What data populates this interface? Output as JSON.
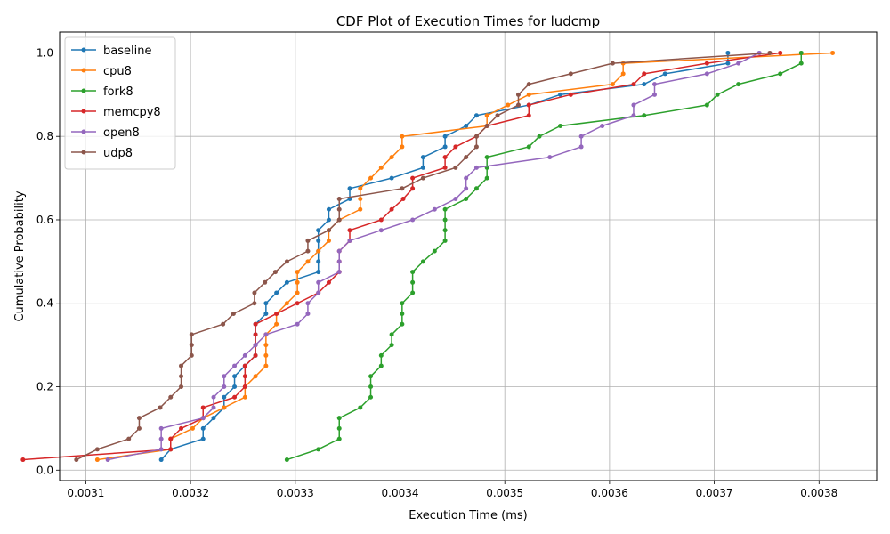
{
  "chart_data": {
    "type": "line",
    "title": "CDF Plot of Execution Times for ludcmp",
    "xlabel": "Execution Time (ms)",
    "ylabel": "Cumulative Probability",
    "xlim": [
      0.003075,
      0.003855
    ],
    "ylim": [
      -0.025,
      1.05
    ],
    "xticks": [
      0.0031,
      0.0032,
      0.0033,
      0.0034,
      0.0035,
      0.0036,
      0.0037,
      0.0038
    ],
    "xtick_labels": [
      "0.0031",
      "0.0032",
      "0.0033",
      "0.0034",
      "0.0035",
      "0.0036",
      "0.0037",
      "0.0038"
    ],
    "yticks": [
      0.0,
      0.2,
      0.4,
      0.6,
      0.8,
      1.0
    ],
    "ytick_labels": [
      "0.0",
      "0.2",
      "0.4",
      "0.6",
      "0.8",
      "1.0"
    ],
    "grid": true,
    "legend_position": "top-left",
    "y_cdf": [
      0.025,
      0.05,
      0.075,
      0.1,
      0.125,
      0.15,
      0.175,
      0.2,
      0.225,
      0.25,
      0.275,
      0.3,
      0.325,
      0.35,
      0.375,
      0.4,
      0.425,
      0.45,
      0.475,
      0.5,
      0.525,
      0.55,
      0.575,
      0.6,
      0.625,
      0.65,
      0.675,
      0.7,
      0.725,
      0.75,
      0.775,
      0.8,
      0.825,
      0.85,
      0.875,
      0.9,
      0.925,
      0.95,
      0.975,
      1.0
    ],
    "series": [
      {
        "name": "baseline",
        "color": "#1f77b4",
        "x": [
          0.003172,
          0.003181,
          0.003212,
          0.003212,
          0.003222,
          0.003232,
          0.003232,
          0.003242,
          0.003242,
          0.003252,
          0.003262,
          0.003262,
          0.003262,
          0.003262,
          0.003272,
          0.003272,
          0.003282,
          0.003292,
          0.003322,
          0.003322,
          0.003322,
          0.003322,
          0.003322,
          0.003332,
          0.003332,
          0.003352,
          0.003352,
          0.003392,
          0.003422,
          0.003422,
          0.003443,
          0.003443,
          0.003463,
          0.003473,
          0.003523,
          0.003553,
          0.003633,
          0.003653,
          0.003713,
          0.003713
        ]
      },
      {
        "name": "cpu8",
        "color": "#ff7f0e",
        "x": [
          0.003111,
          0.003181,
          0.003181,
          0.003202,
          0.003212,
          0.003232,
          0.003252,
          0.003252,
          0.003262,
          0.003272,
          0.003272,
          0.003272,
          0.003272,
          0.003282,
          0.003282,
          0.003292,
          0.003302,
          0.003302,
          0.003302,
          0.003312,
          0.003322,
          0.003332,
          0.003332,
          0.003342,
          0.003362,
          0.003362,
          0.003362,
          0.003372,
          0.003382,
          0.003392,
          0.003402,
          0.003402,
          0.003483,
          0.003483,
          0.003503,
          0.003523,
          0.003603,
          0.003613,
          0.003613,
          0.003813
        ]
      },
      {
        "name": "fork8",
        "color": "#2ca02c",
        "x": [
          0.003292,
          0.003322,
          0.003342,
          0.003342,
          0.003342,
          0.003362,
          0.003372,
          0.003372,
          0.003372,
          0.003382,
          0.003382,
          0.003392,
          0.003392,
          0.003402,
          0.003402,
          0.003402,
          0.003412,
          0.003412,
          0.003412,
          0.003422,
          0.003433,
          0.003443,
          0.003443,
          0.003443,
          0.003443,
          0.003463,
          0.003473,
          0.003483,
          0.003483,
          0.003483,
          0.003523,
          0.003533,
          0.003553,
          0.003633,
          0.003693,
          0.003703,
          0.003723,
          0.003763,
          0.003783,
          0.003783
        ]
      },
      {
        "name": "memcpy8",
        "color": "#d62728",
        "x": [
          0.00304,
          0.003181,
          0.003181,
          0.003191,
          0.003212,
          0.003212,
          0.003242,
          0.003252,
          0.003252,
          0.003252,
          0.003262,
          0.003262,
          0.003262,
          0.003262,
          0.003282,
          0.003302,
          0.003322,
          0.003332,
          0.003342,
          0.003342,
          0.003342,
          0.003352,
          0.003352,
          0.003382,
          0.003392,
          0.003403,
          0.003412,
          0.003412,
          0.003443,
          0.003443,
          0.003453,
          0.003473,
          0.003483,
          0.003523,
          0.003523,
          0.003563,
          0.003623,
          0.003633,
          0.003693,
          0.003763
        ]
      },
      {
        "name": "open8",
        "color": "#9467bd",
        "x": [
          0.003121,
          0.003172,
          0.003172,
          0.003172,
          0.003212,
          0.003222,
          0.003222,
          0.003232,
          0.003232,
          0.003242,
          0.003252,
          0.003262,
          0.003272,
          0.003302,
          0.003312,
          0.003312,
          0.003322,
          0.003322,
          0.003342,
          0.003342,
          0.003342,
          0.003352,
          0.003382,
          0.003412,
          0.003433,
          0.003453,
          0.003463,
          0.003463,
          0.003473,
          0.003543,
          0.003573,
          0.003573,
          0.003593,
          0.003623,
          0.003623,
          0.003643,
          0.003643,
          0.003693,
          0.003723,
          0.003743
        ]
      },
      {
        "name": "udp8",
        "color": "#8c564b",
        "x": [
          0.003091,
          0.003111,
          0.003141,
          0.003151,
          0.003151,
          0.003171,
          0.003181,
          0.003191,
          0.003191,
          0.003191,
          0.003201,
          0.003201,
          0.003201,
          0.003231,
          0.003241,
          0.003261,
          0.003261,
          0.003271,
          0.003281,
          0.003292,
          0.003312,
          0.003312,
          0.003332,
          0.003342,
          0.003342,
          0.003342,
          0.003402,
          0.003422,
          0.003453,
          0.003463,
          0.003473,
          0.003473,
          0.003483,
          0.003493,
          0.003513,
          0.003513,
          0.003523,
          0.003563,
          0.003603,
          0.003753
        ]
      }
    ]
  }
}
